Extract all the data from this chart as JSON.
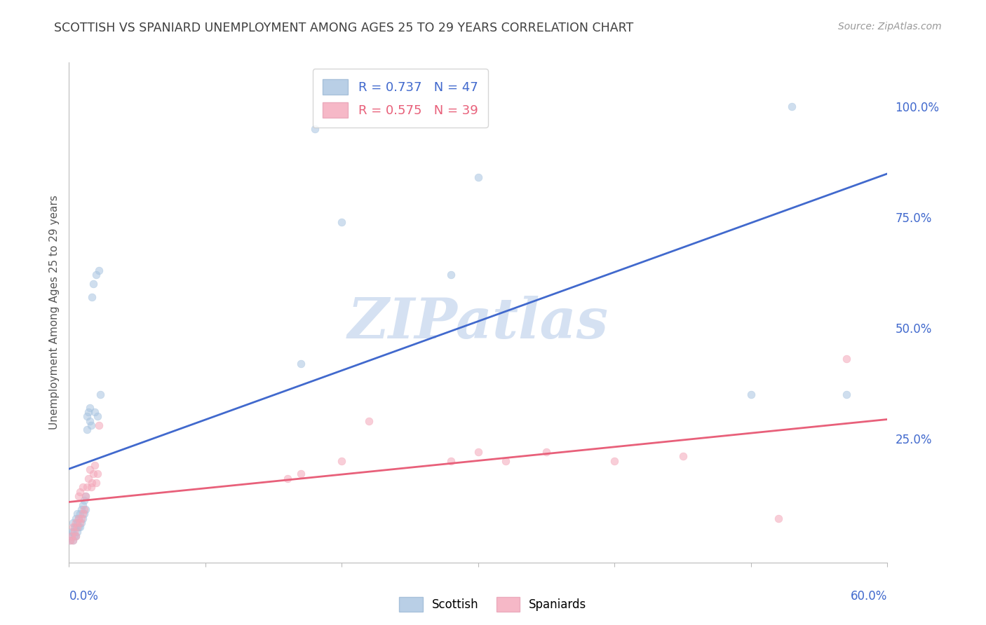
{
  "title": "SCOTTISH VS SPANIARD UNEMPLOYMENT AMONG AGES 25 TO 29 YEARS CORRELATION CHART",
  "source": "Source: ZipAtlas.com",
  "ylabel": "Unemployment Among Ages 25 to 29 years",
  "ytick_labels": [
    "100.0%",
    "75.0%",
    "50.0%",
    "25.0%"
  ],
  "ytick_values": [
    1.0,
    0.75,
    0.5,
    0.25
  ],
  "xlim": [
    0.0,
    0.6
  ],
  "ylim": [
    -0.03,
    1.1
  ],
  "watermark": "ZIPatlas",
  "scottish_color": "#A8C4E0",
  "spaniard_color": "#F4A7B9",
  "scottish_line_color": "#4169CD",
  "spaniard_line_color": "#E8607A",
  "background_color": "#FFFFFF",
  "grid_color": "#C8C8C8",
  "axis_color": "#BBBBBB",
  "title_color": "#404040",
  "label_color": "#4169CD",
  "marker_size": 60,
  "alpha": 0.55,
  "scottish_x": [
    0.001,
    0.002,
    0.002,
    0.003,
    0.003,
    0.003,
    0.004,
    0.004,
    0.005,
    0.005,
    0.005,
    0.006,
    0.006,
    0.006,
    0.007,
    0.007,
    0.008,
    0.008,
    0.009,
    0.009,
    0.01,
    0.01,
    0.011,
    0.011,
    0.012,
    0.012,
    0.013,
    0.013,
    0.014,
    0.015,
    0.015,
    0.016,
    0.017,
    0.018,
    0.019,
    0.02,
    0.021,
    0.022,
    0.023,
    0.17,
    0.18,
    0.2,
    0.28,
    0.3,
    0.5,
    0.53,
    0.57
  ],
  "scottish_y": [
    0.02,
    0.03,
    0.04,
    0.02,
    0.04,
    0.06,
    0.03,
    0.05,
    0.03,
    0.05,
    0.07,
    0.04,
    0.06,
    0.08,
    0.05,
    0.07,
    0.05,
    0.08,
    0.06,
    0.09,
    0.07,
    0.1,
    0.08,
    0.11,
    0.09,
    0.12,
    0.27,
    0.3,
    0.31,
    0.29,
    0.32,
    0.28,
    0.57,
    0.6,
    0.31,
    0.62,
    0.3,
    0.63,
    0.35,
    0.42,
    0.95,
    0.74,
    0.62,
    0.84,
    0.35,
    1.0,
    0.35
  ],
  "spaniard_x": [
    0.001,
    0.002,
    0.003,
    0.003,
    0.004,
    0.005,
    0.005,
    0.006,
    0.007,
    0.007,
    0.008,
    0.008,
    0.009,
    0.01,
    0.01,
    0.011,
    0.012,
    0.013,
    0.014,
    0.015,
    0.016,
    0.017,
    0.018,
    0.019,
    0.02,
    0.021,
    0.022,
    0.16,
    0.17,
    0.2,
    0.22,
    0.28,
    0.3,
    0.32,
    0.35,
    0.4,
    0.45,
    0.52,
    0.57
  ],
  "spaniard_y": [
    0.02,
    0.03,
    0.02,
    0.05,
    0.04,
    0.03,
    0.06,
    0.05,
    0.07,
    0.12,
    0.06,
    0.13,
    0.07,
    0.08,
    0.14,
    0.09,
    0.12,
    0.14,
    0.16,
    0.18,
    0.14,
    0.15,
    0.17,
    0.19,
    0.15,
    0.17,
    0.28,
    0.16,
    0.17,
    0.2,
    0.29,
    0.2,
    0.22,
    0.2,
    0.22,
    0.2,
    0.21,
    0.07,
    0.43
  ]
}
